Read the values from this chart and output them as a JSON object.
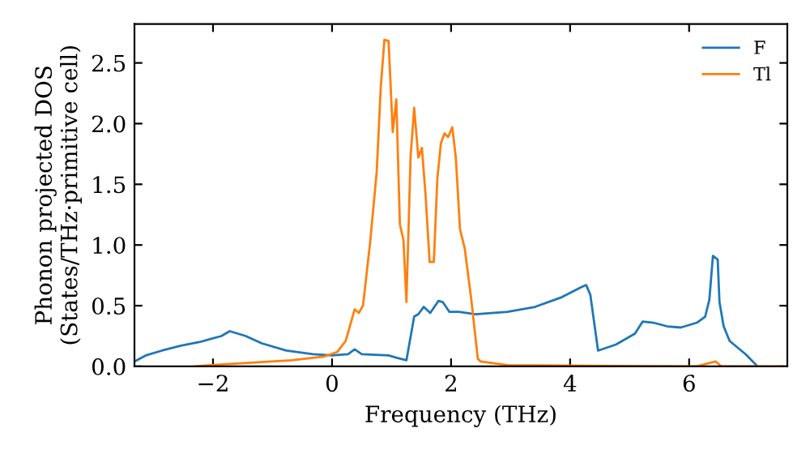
{
  "chart_data": {
    "type": "line",
    "xlabel": "Frequency (THz)",
    "ylabel": "Phonon projected DOS\n(States/THz·primitive cell)",
    "xlim": [
      -3.32,
      7.65
    ],
    "ylim": [
      0,
      2.82
    ],
    "xticks": [
      {
        "value": -2,
        "label": "−2"
      },
      0,
      2,
      4,
      6
    ],
    "yticks": [
      {
        "value": 0,
        "label": "0.0"
      },
      {
        "value": 0.5,
        "label": "0.5"
      },
      {
        "value": 1,
        "label": "1.0"
      },
      {
        "value": 1.5,
        "label": "1.5"
      },
      {
        "value": 2,
        "label": "2.0"
      },
      {
        "value": 2.5,
        "label": "2.5"
      }
    ],
    "grid": false,
    "legend": "top right",
    "marker": "none",
    "line_style": "solid",
    "series": [
      {
        "name": "F",
        "color": "#1f77b4",
        "x": [
          -3.32,
          -3.13,
          -2.86,
          -2.54,
          -2.23,
          -1.86,
          -1.72,
          -1.45,
          -1.18,
          -0.77,
          -0.32,
          0,
          0.27,
          0.38,
          0.5,
          0.95,
          1.09,
          1.25,
          1.38,
          1.45,
          1.54,
          1.65,
          1.79,
          1.86,
          1.97,
          2.13,
          2.41,
          2.95,
          3.41,
          3.86,
          4.18,
          4.27,
          4.34,
          4.47,
          4.77,
          5.09,
          5.22,
          5.4,
          5.63,
          5.86,
          6.13,
          6.27,
          6.34,
          6.4,
          6.48,
          6.51,
          6.58,
          6.68,
          6.95,
          7.13
        ],
        "values": [
          0.04,
          0.09,
          0.13,
          0.17,
          0.2,
          0.25,
          0.29,
          0.25,
          0.19,
          0.13,
          0.1,
          0.09,
          0.1,
          0.14,
          0.1,
          0.09,
          0.07,
          0.05,
          0.41,
          0.43,
          0.49,
          0.44,
          0.54,
          0.53,
          0.45,
          0.45,
          0.43,
          0.45,
          0.49,
          0.57,
          0.65,
          0.67,
          0.59,
          0.13,
          0.18,
          0.27,
          0.37,
          0.36,
          0.33,
          0.32,
          0.36,
          0.41,
          0.55,
          0.91,
          0.88,
          0.53,
          0.33,
          0.21,
          0.1,
          0.01
        ]
      },
      {
        "name": "Tl",
        "color": "#ff7f0e",
        "x": [
          -2.3,
          -2.04,
          -0.68,
          -0.14,
          0.09,
          0.23,
          0.38,
          0.45,
          0.52,
          0.64,
          0.75,
          0.82,
          0.88,
          0.95,
          1.02,
          1.08,
          1.14,
          1.2,
          1.25,
          1.32,
          1.38,
          1.45,
          1.51,
          1.57,
          1.64,
          1.71,
          1.77,
          1.83,
          1.89,
          1.95,
          2.02,
          2.08,
          2.15,
          2.23,
          2.34,
          2.45,
          2.5,
          2.95,
          6.13,
          6.36,
          6.45,
          6.54,
          7.57
        ],
        "values": [
          0.0,
          0.01,
          0.05,
          0.08,
          0.12,
          0.21,
          0.47,
          0.44,
          0.5,
          1.02,
          1.6,
          2.31,
          2.69,
          2.68,
          1.93,
          2.2,
          1.17,
          1.04,
          0.53,
          1.73,
          2.13,
          1.72,
          1.8,
          1.42,
          0.86,
          0.86,
          1.55,
          1.84,
          1.92,
          1.89,
          1.97,
          1.72,
          1.13,
          0.97,
          0.55,
          0.06,
          0.04,
          0.01,
          0.0,
          0.03,
          0.04,
          0.0,
          0.0
        ]
      }
    ]
  }
}
